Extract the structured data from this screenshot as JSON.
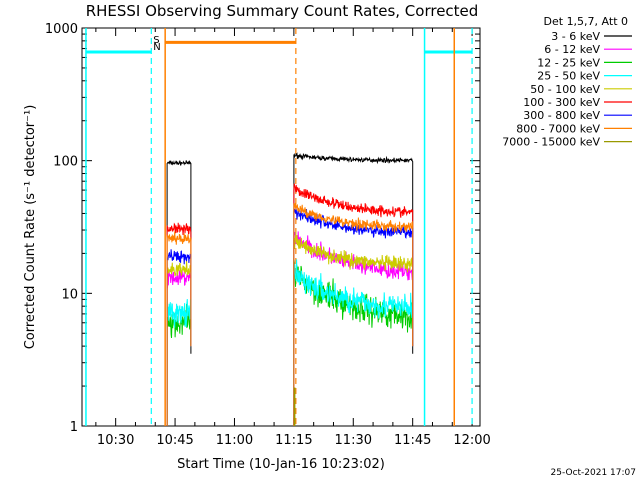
{
  "chart_data": {
    "type": "line",
    "title": "RHESSI Observing Summary Count Rates, Corrected",
    "xlabel": "Start Time (10-Jan-16 10:23:02)",
    "ylabel": "Corrected Count Rate (s⁻¹ detector⁻¹)",
    "yscale": "log",
    "ylim": [
      1,
      1000
    ],
    "xlim_minutes": [
      "10:23",
      "12:03"
    ],
    "x_ticks": [
      {
        "t": 7,
        "label": "10:30"
      },
      {
        "t": 22,
        "label": "10:45"
      },
      {
        "t": 37,
        "label": "11:00"
      },
      {
        "t": 52,
        "label": "11:15"
      },
      {
        "t": 67,
        "label": "11:30"
      },
      {
        "t": 82,
        "label": "11:45"
      },
      {
        "t": 97,
        "label": "12:00"
      }
    ],
    "y_ticks": [
      {
        "v": 1,
        "label": "1"
      },
      {
        "v": 10,
        "label": "10"
      },
      {
        "v": 100,
        "label": "100"
      },
      {
        "v": 1000,
        "label": "1000"
      }
    ],
    "legend_header": "Det 1,5,7, Att 0",
    "legend_position": "top-right (outside plot)",
    "timestamp": "25-Oct-2021 17:07",
    "segments": [
      {
        "start": 20,
        "end": 26
      },
      {
        "start": 52,
        "end": 82
      }
    ],
    "series": [
      {
        "name": "3 - 6 keV",
        "color": "#000000",
        "values": [
          [
            96,
            96
          ],
          [
            110,
            100
          ]
        ]
      },
      {
        "name": "6 - 12 keV",
        "color": "#ff00ff",
        "values": [
          [
            13,
            13
          ],
          [
            27,
            14
          ]
        ]
      },
      {
        "name": "12 - 25 keV",
        "color": "#00cc00",
        "values": [
          [
            6,
            6
          ],
          [
            14,
            6.5
          ]
        ]
      },
      {
        "name": "25 - 50 keV",
        "color": "#00ffff",
        "values": [
          [
            7,
            7
          ],
          [
            14,
            7.5
          ]
        ]
      },
      {
        "name": "50 - 100 keV",
        "color": "#cccc00",
        "values": [
          [
            15,
            15
          ],
          [
            25,
            16
          ]
        ]
      },
      {
        "name": "100 - 300 keV",
        "color": "#ff0000",
        "values": [
          [
            31,
            31
          ],
          [
            62,
            40
          ]
        ]
      },
      {
        "name": "300 - 800 keV",
        "color": "#0000ff",
        "values": [
          [
            19,
            19
          ],
          [
            42,
            28
          ]
        ]
      },
      {
        "name": "800 - 7000 keV",
        "color": "#ff8000",
        "values": [
          [
            26,
            26
          ],
          [
            45,
            31
          ]
        ]
      },
      {
        "name": "7000 - 15000 keV",
        "color": "#999900",
        "values": [
          [
            null,
            null
          ],
          [
            null,
            null
          ]
        ]
      }
    ],
    "flags": {
      "saa_cyan": {
        "color": "#00ffff",
        "level": 660,
        "intervals": [
          [
            -0.5,
            16
          ],
          [
            85,
            97
          ]
        ],
        "vlines_solid": [
          -0.5,
          85
        ],
        "vlines_dashed": [
          16,
          97
        ]
      },
      "eclipse_orange": {
        "color": "#ff8000",
        "level": 780,
        "intervals": [
          [
            19.5,
            52.5
          ]
        ],
        "vlines_solid": [
          19.5,
          92.5
        ],
        "vlines_dashed": [
          52.5
        ]
      },
      "markers": [
        {
          "label": "S",
          "t": 17,
          "color": "#ff8000"
        },
        {
          "label": "N",
          "t": 17,
          "color": "#00ffff"
        }
      ]
    }
  }
}
